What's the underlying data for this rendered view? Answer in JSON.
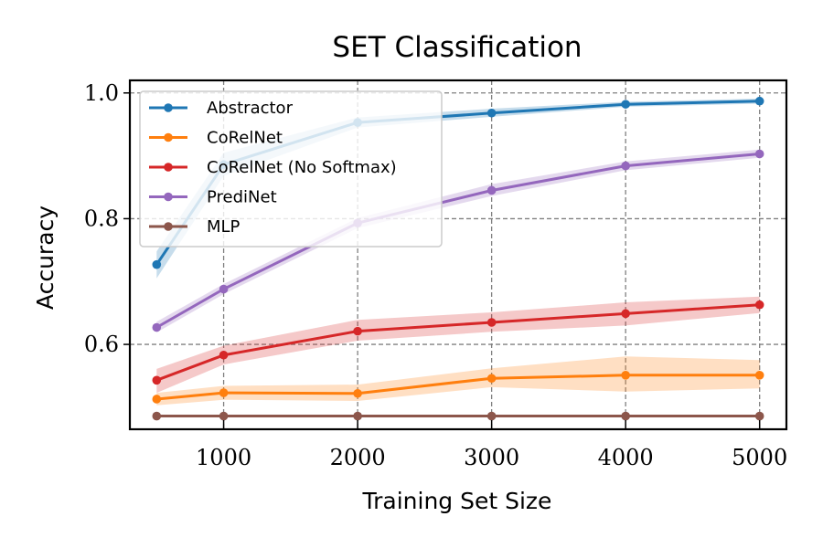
{
  "chart_data": {
    "type": "line",
    "title": "SET Classification",
    "xlabel": "Training Set Size",
    "ylabel": "Accuracy",
    "x": [
      500,
      1000,
      2000,
      3000,
      4000,
      5000
    ],
    "xlim": [
      300,
      5200
    ],
    "ylim": [
      0.465,
      1.02
    ],
    "xticks": [
      1000,
      2000,
      3000,
      4000,
      5000
    ],
    "xtick_labels": [
      "1000",
      "2000",
      "3000",
      "4000",
      "5000"
    ],
    "yticks": [
      0.6,
      0.8,
      1.0
    ],
    "ytick_labels": [
      "0.6",
      "0.8",
      "1.0"
    ],
    "grid": true,
    "legend_position": "upper-left",
    "series": [
      {
        "name": "Abstractor",
        "color": "#1f77b4",
        "values": [
          0.727,
          0.886,
          0.953,
          0.968,
          0.982,
          0.987
        ],
        "lower": [
          0.705,
          0.868,
          0.945,
          0.962,
          0.978,
          0.983
        ],
        "upper": [
          0.748,
          0.905,
          0.961,
          0.975,
          0.986,
          0.991
        ]
      },
      {
        "name": "CoRelNet",
        "color": "#ff7f0e",
        "values": [
          0.513,
          0.523,
          0.522,
          0.546,
          0.551,
          0.551
        ],
        "lower": [
          0.503,
          0.512,
          0.51,
          0.532,
          0.525,
          0.53
        ],
        "upper": [
          0.523,
          0.534,
          0.536,
          0.562,
          0.581,
          0.575
        ]
      },
      {
        "name": "CoRelNet (No Softmax)",
        "color": "#d62728",
        "values": [
          0.543,
          0.583,
          0.621,
          0.635,
          0.649,
          0.663
        ],
        "lower": [
          0.523,
          0.568,
          0.606,
          0.62,
          0.63,
          0.65
        ],
        "upper": [
          0.561,
          0.598,
          0.639,
          0.651,
          0.667,
          0.676
        ]
      },
      {
        "name": "PrediNet",
        "color": "#9467bd",
        "values": [
          0.627,
          0.688,
          0.793,
          0.845,
          0.884,
          0.903
        ],
        "lower": [
          0.619,
          0.68,
          0.785,
          0.836,
          0.877,
          0.897
        ],
        "upper": [
          0.636,
          0.696,
          0.801,
          0.855,
          0.891,
          0.91
        ]
      },
      {
        "name": "MLP",
        "color": "#8c564b",
        "values": [
          0.486,
          0.486,
          0.486,
          0.486,
          0.486,
          0.486
        ],
        "lower": [
          0.485,
          0.485,
          0.485,
          0.485,
          0.485,
          0.485
        ],
        "upper": [
          0.487,
          0.487,
          0.487,
          0.487,
          0.487,
          0.487
        ]
      }
    ]
  }
}
